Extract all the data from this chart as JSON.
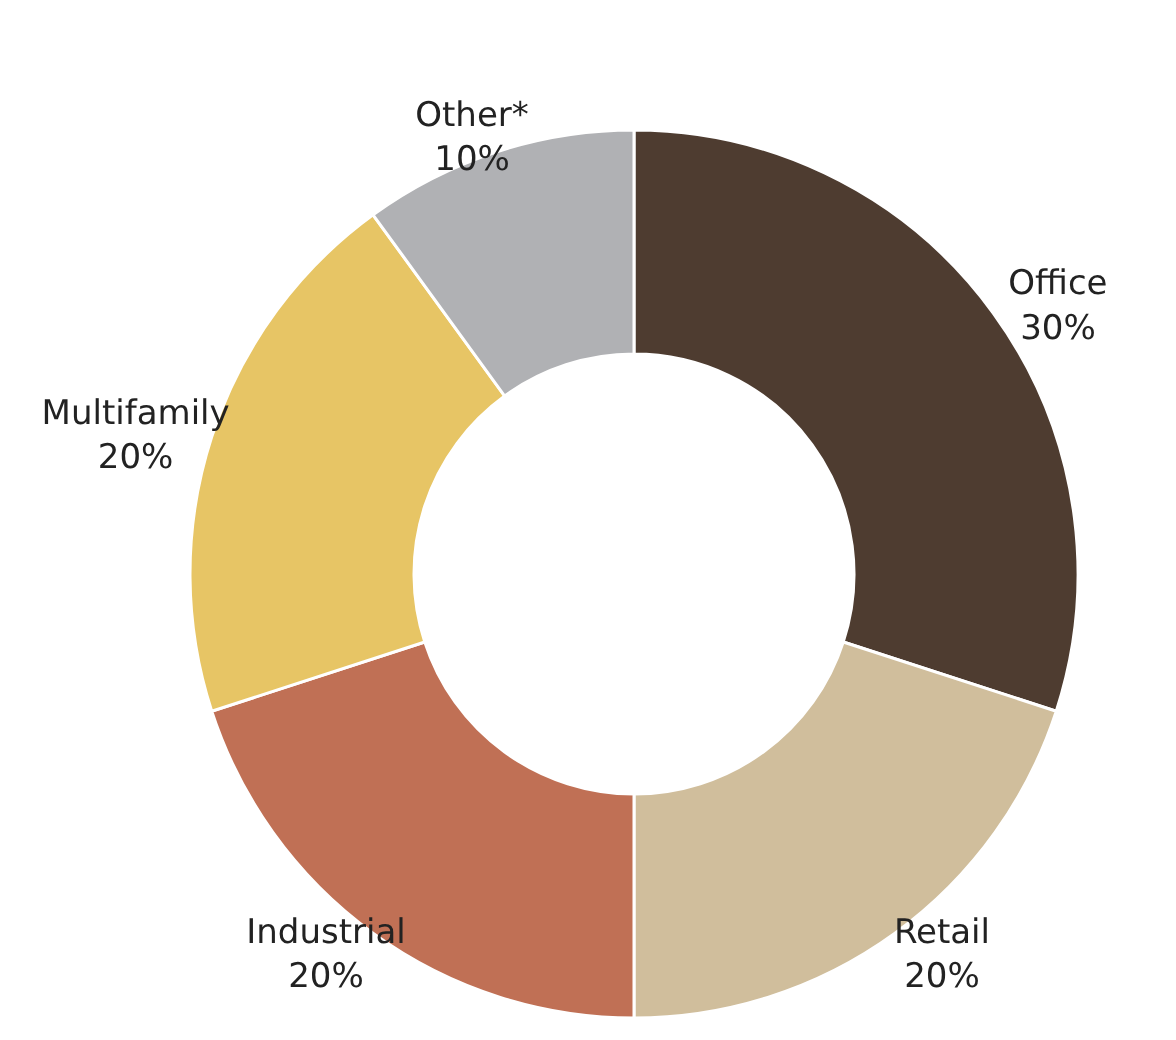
{
  "chart_data": {
    "type": "donut",
    "categories": [
      "Office",
      "Retail",
      "Industrial",
      "Multifamily",
      "Other*"
    ],
    "values": [
      30,
      20,
      20,
      20,
      10
    ],
    "colors": [
      "#4e3c30",
      "#d0be9c",
      "#c07055",
      "#e7c565",
      "#b0b1b4"
    ],
    "value_labels": [
      "30%",
      "20%",
      "20%",
      "20%",
      "10%"
    ]
  }
}
